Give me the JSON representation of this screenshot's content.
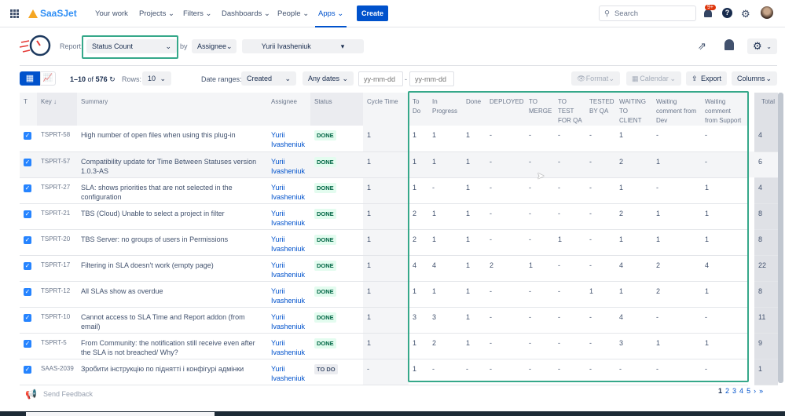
{
  "nav": {
    "logo": "SaaSJet",
    "items": [
      "Your work",
      "Projects",
      "Filters",
      "Dashboards",
      "People",
      "Apps"
    ],
    "create": "Create",
    "search_placeholder": "Search",
    "notification_badge": "9+"
  },
  "report": {
    "label": "Report:",
    "value": "Status Count",
    "by": "by",
    "group": "Assignee",
    "user": "Yurii Ivasheniuk"
  },
  "toolbar": {
    "range_text": "1–10",
    "of": "of",
    "total": "576",
    "rows_label": "Rows:",
    "rows": "10",
    "date_ranges_label": "Date ranges:",
    "date_field": "Created",
    "date_preset": "Any dates",
    "from_placeholder": "yy-mm-dd",
    "to_placeholder": "yy-mm-dd",
    "format": "Format",
    "calendar": "Calendar",
    "export": "Export",
    "columns": "Columns"
  },
  "table": {
    "headers": [
      "T",
      "Key ↓",
      "Summary",
      "Assignee",
      "Status",
      "Cycle Time",
      "To Do",
      "In Progress",
      "Done",
      "DEPLOYED",
      "TO MERGE",
      "TO TEST FOR QA",
      "TESTED BY QA",
      "WAITING TO CLIENT",
      "Waiting comment from Dev",
      "Waiting comment from Support",
      "Total"
    ],
    "rows": [
      {
        "key": "TSPRT-58",
        "summary": "High number of open files when using this plug-in",
        "assignee": "Yurii Ivasheniuk",
        "status": "DONE",
        "cycle": "1",
        "counts": [
          "1",
          "1",
          "1",
          "-",
          "-",
          "-",
          "-",
          "1",
          "-",
          "-"
        ],
        "total": "4"
      },
      {
        "key": "TSPRT-57",
        "summary": "Compatibility update for Time Between Statuses version 1.0.3-AS",
        "assignee": "Yurii Ivasheniuk",
        "status": "DONE",
        "cycle": "1",
        "counts": [
          "1",
          "1",
          "1",
          "-",
          "-",
          "-",
          "-",
          "2",
          "1",
          "-"
        ],
        "total": "6"
      },
      {
        "key": "TSPRT-27",
        "summary": "SLA: shows priorities that are not selected in the configuration",
        "assignee": "Yurii Ivasheniuk",
        "status": "DONE",
        "cycle": "1",
        "counts": [
          "1",
          "-",
          "1",
          "-",
          "-",
          "-",
          "-",
          "1",
          "-",
          "1"
        ],
        "total": "4"
      },
      {
        "key": "TSPRT-21",
        "summary": "TBS (Cloud) Unable to select a project in filter",
        "assignee": "Yurii Ivasheniuk",
        "status": "DONE",
        "cycle": "1",
        "counts": [
          "2",
          "1",
          "1",
          "-",
          "-",
          "-",
          "-",
          "2",
          "1",
          "1"
        ],
        "total": "8"
      },
      {
        "key": "TSPRT-20",
        "summary": "TBS Server: no groups of users in Permissions",
        "assignee": "Yurii Ivasheniuk",
        "status": "DONE",
        "cycle": "1",
        "counts": [
          "2",
          "1",
          "1",
          "-",
          "-",
          "1",
          "-",
          "1",
          "1",
          "1"
        ],
        "total": "8"
      },
      {
        "key": "TSPRT-17",
        "summary": "Filtering in SLA doesn't work (empty page)",
        "assignee": "Yurii Ivasheniuk",
        "status": "DONE",
        "cycle": "1",
        "counts": [
          "4",
          "4",
          "1",
          "2",
          "1",
          "-",
          "-",
          "4",
          "2",
          "4"
        ],
        "total": "22"
      },
      {
        "key": "TSPRT-12",
        "summary": "All SLAs show as overdue",
        "assignee": "Yurii Ivasheniuk",
        "status": "DONE",
        "cycle": "1",
        "counts": [
          "1",
          "1",
          "1",
          "-",
          "-",
          "-",
          "1",
          "1",
          "2",
          "1"
        ],
        "total": "8"
      },
      {
        "key": "TSPRT-10",
        "summary": "Cannot access to SLA Time and Report addon (from email)",
        "assignee": "Yurii Ivasheniuk",
        "status": "DONE",
        "cycle": "1",
        "counts": [
          "3",
          "3",
          "1",
          "-",
          "-",
          "-",
          "-",
          "4",
          "-",
          "-"
        ],
        "total": "11"
      },
      {
        "key": "TSPRT-5",
        "summary": "From Community: the notification still receive even after the SLA is not breached/ Why?",
        "assignee": "Yurii Ivasheniuk",
        "status": "DONE",
        "cycle": "1",
        "counts": [
          "1",
          "2",
          "1",
          "-",
          "-",
          "-",
          "-",
          "3",
          "1",
          "1"
        ],
        "total": "9"
      },
      {
        "key": "SAAS-2039",
        "summary": "Зробити інструкцію по піднятті і конфігурі адмінки",
        "assignee": "Yurii Ivasheniuk",
        "status": "TO DO",
        "cycle": "-",
        "counts": [
          "1",
          "-",
          "-",
          "-",
          "-",
          "-",
          "-",
          "-",
          "-",
          "-"
        ],
        "total": "1"
      }
    ]
  },
  "footer": {
    "feedback": "Send Feedback",
    "pages": [
      "1",
      "2",
      "3",
      "4",
      "5",
      "›",
      "»"
    ]
  },
  "colors": {
    "accent": "#0052cc",
    "highlight": "#36a88a",
    "done_bg": "#e3fcef"
  }
}
